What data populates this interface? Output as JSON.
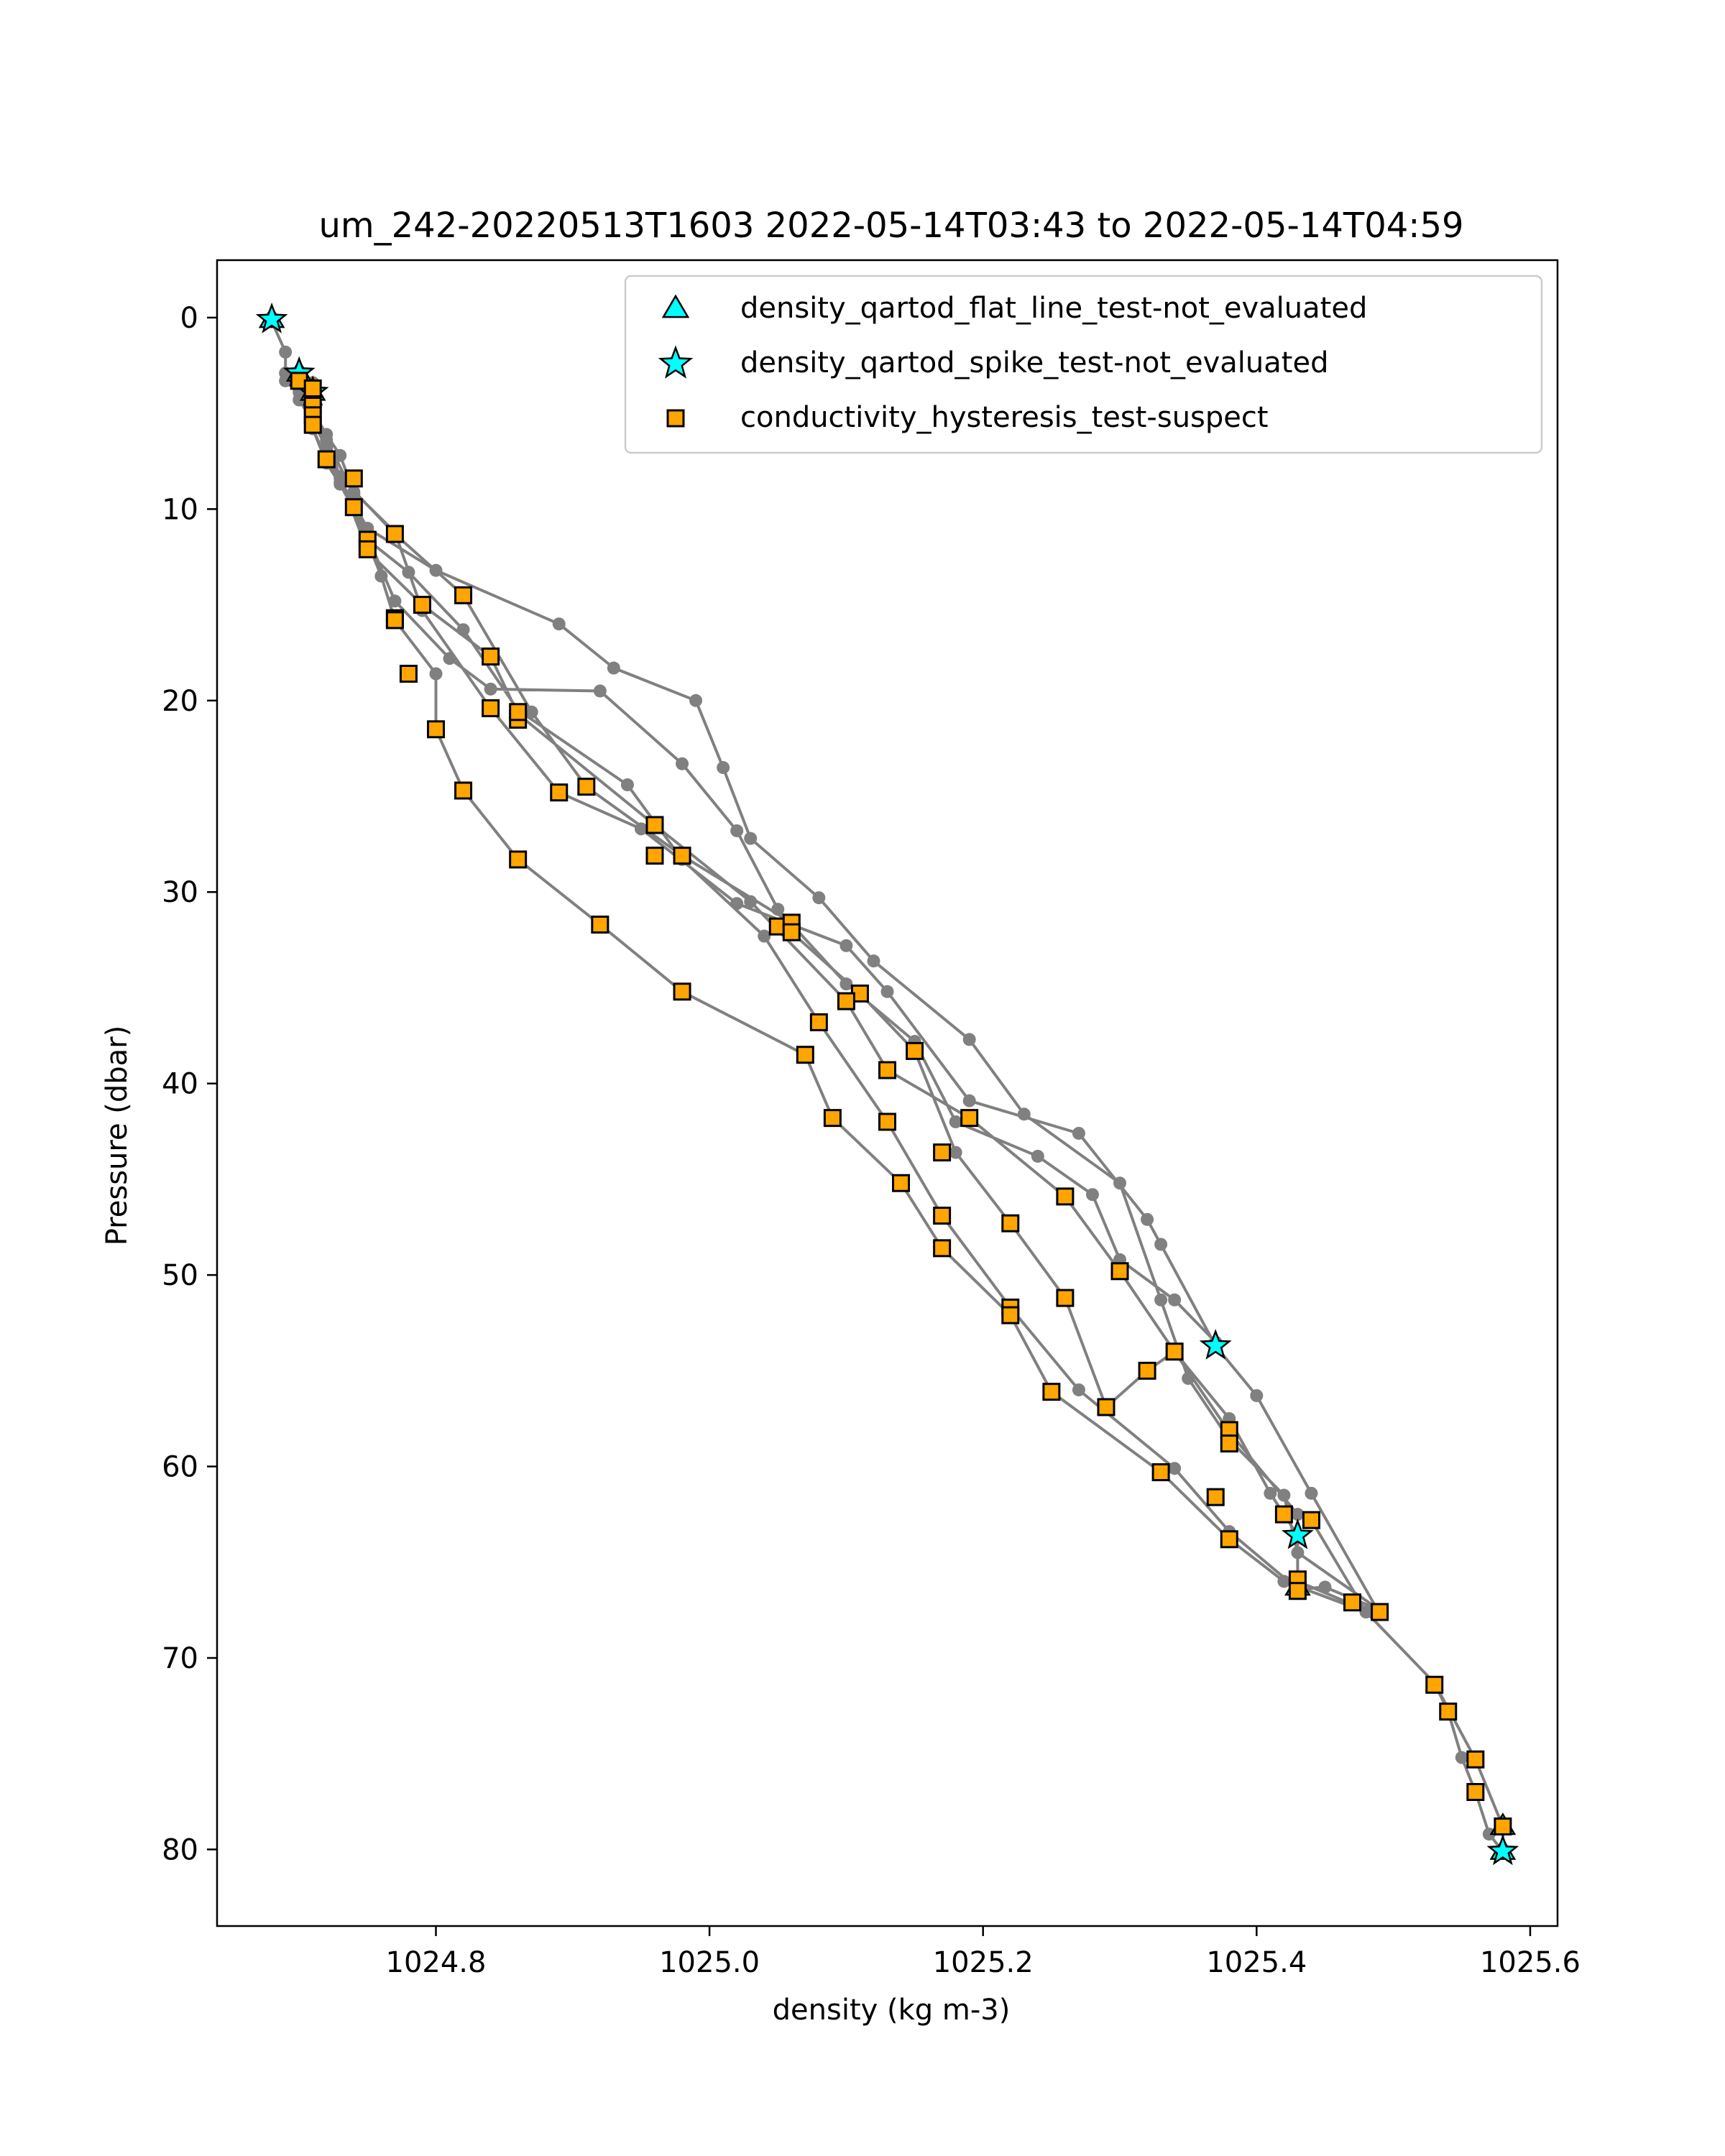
{
  "chart_data": {
    "type": "scatter",
    "title": "um_242-20220513T1603 2022-05-14T03:43 to 2022-05-14T04:59",
    "xlabel": "density (kg m-3)",
    "ylabel": "Pressure (dbar)",
    "xlim": [
      1024.64,
      1025.62
    ],
    "ylim": [
      84,
      -3
    ],
    "y_inverted": true,
    "xticks": [
      1024.8,
      1025.0,
      1025.2,
      1025.4,
      1025.6
    ],
    "xtick_labels": [
      "1024.8",
      "1025.0",
      "1025.2",
      "1025.4",
      "1025.6"
    ],
    "yticks": [
      0,
      10,
      20,
      30,
      40,
      50,
      60,
      70,
      80
    ],
    "ytick_labels": [
      "0",
      "10",
      "20",
      "30",
      "40",
      "50",
      "60",
      "70",
      "80"
    ],
    "grid": false,
    "legend_position": "top-right",
    "colors": {
      "line": "#808080",
      "suspect": "#FFA500",
      "not_evaluated": "#00FFFF",
      "edge": "#000000"
    },
    "profile_line": {
      "name": "",
      "points": [
        [
          1024.68,
          0.2
        ],
        [
          1024.69,
          1.8
        ],
        [
          1024.69,
          2.9
        ],
        [
          1024.7,
          3.4
        ],
        [
          1024.7,
          3.9
        ],
        [
          1024.71,
          4.2
        ],
        [
          1024.71,
          5.1
        ],
        [
          1024.71,
          5.8
        ],
        [
          1024.72,
          7.4
        ],
        [
          1024.73,
          8.6
        ],
        [
          1024.74,
          10.0
        ],
        [
          1024.75,
          11.7
        ],
        [
          1024.76,
          13.5
        ],
        [
          1024.77,
          15.8
        ],
        [
          1024.8,
          18.6
        ],
        [
          1024.8,
          21.5
        ],
        [
          1024.82,
          24.7
        ],
        [
          1024.86,
          28.3
        ],
        [
          1024.92,
          31.7
        ],
        [
          1024.98,
          35.2
        ],
        [
          1025.07,
          38.5
        ],
        [
          1025.09,
          41.8
        ],
        [
          1025.14,
          45.2
        ],
        [
          1025.17,
          48.6
        ],
        [
          1025.22,
          52.1
        ],
        [
          1025.25,
          56.1
        ],
        [
          1025.33,
          60.3
        ],
        [
          1025.38,
          63.8
        ],
        [
          1025.42,
          66.0
        ],
        [
          1025.48,
          67.6
        ],
        [
          1025.53,
          71.3
        ],
        [
          1025.56,
          75.3
        ],
        [
          1025.58,
          78.8
        ],
        [
          1025.58,
          80.1
        ],
        [
          1025.58,
          80.1
        ],
        [
          1025.57,
          79.2
        ],
        [
          1025.56,
          77.0
        ],
        [
          1025.55,
          75.2
        ],
        [
          1025.54,
          72.8
        ],
        [
          1025.53,
          71.3
        ],
        [
          1025.48,
          67.6
        ],
        [
          1025.44,
          62.8
        ],
        [
          1025.43,
          62.5
        ],
        [
          1025.38,
          58.2
        ],
        [
          1025.34,
          54.0
        ],
        [
          1025.32,
          55.0
        ],
        [
          1025.29,
          56.9
        ],
        [
          1025.26,
          51.2
        ],
        [
          1025.22,
          47.3
        ],
        [
          1025.18,
          43.6
        ],
        [
          1025.15,
          38.3
        ],
        [
          1025.11,
          35.3
        ],
        [
          1025.06,
          32.1
        ],
        [
          1025.06,
          31.6
        ],
        [
          1024.98,
          28.1
        ],
        [
          1024.91,
          24.5
        ],
        [
          1024.87,
          20.6
        ],
        [
          1024.82,
          14.5
        ],
        [
          1024.77,
          11.3
        ],
        [
          1024.73,
          8.3
        ],
        [
          1024.72,
          6.8
        ],
        [
          1024.71,
          5.4
        ],
        [
          1024.7,
          4.3
        ],
        [
          1024.7,
          3.6
        ],
        [
          1024.69,
          3.3
        ],
        [
          1024.7,
          3.7
        ],
        [
          1024.72,
          6.1
        ],
        [
          1024.73,
          8.4
        ],
        [
          1024.75,
          12.2
        ],
        [
          1024.79,
          15.0
        ],
        [
          1024.84,
          17.7
        ],
        [
          1024.86,
          20.7
        ],
        [
          1024.96,
          26.5
        ],
        [
          1025.03,
          30.5
        ],
        [
          1025.1,
          35.7
        ],
        [
          1025.13,
          39.3
        ],
        [
          1025.19,
          41.8
        ],
        [
          1025.26,
          45.9
        ],
        [
          1025.3,
          49.8
        ],
        [
          1025.34,
          54.0
        ],
        [
          1025.38,
          57.5
        ],
        [
          1025.41,
          61.4
        ],
        [
          1025.43,
          63.6
        ],
        [
          1025.43,
          66.0
        ],
        [
          1025.47,
          67.2
        ],
        [
          1025.49,
          67.7
        ],
        [
          1025.49,
          67.7
        ],
        [
          1025.44,
          61.4
        ],
        [
          1025.4,
          56.3
        ],
        [
          1025.37,
          53.7
        ],
        [
          1025.33,
          48.4
        ],
        [
          1025.32,
          47.1
        ],
        [
          1025.27,
          42.6
        ],
        [
          1025.19,
          40.9
        ],
        [
          1025.13,
          35.2
        ],
        [
          1025.1,
          32.8
        ],
        [
          1025.02,
          30.6
        ],
        [
          1024.95,
          26.7
        ],
        [
          1024.89,
          24.8
        ],
        [
          1024.84,
          20.4
        ],
        [
          1024.79,
          15.3
        ],
        [
          1024.77,
          11.2
        ],
        [
          1024.74,
          9.1
        ],
        [
          1024.73,
          7.2
        ],
        [
          1024.71,
          5.0
        ],
        [
          1024.7,
          3.3
        ],
        [
          1024.7,
          3.3
        ],
        [
          1024.71,
          4.5
        ],
        [
          1024.72,
          6.4
        ],
        [
          1024.74,
          9.2
        ],
        [
          1024.75,
          11.6
        ],
        [
          1024.78,
          13.3
        ],
        [
          1024.82,
          16.3
        ],
        [
          1024.86,
          20.5
        ],
        [
          1024.94,
          24.4
        ],
        [
          1024.98,
          28.3
        ],
        [
          1025.04,
          32.3
        ],
        [
          1025.08,
          36.8
        ],
        [
          1025.13,
          42.0
        ],
        [
          1025.17,
          46.9
        ],
        [
          1025.22,
          51.7
        ],
        [
          1025.27,
          56.0
        ],
        [
          1025.34,
          60.1
        ],
        [
          1025.38,
          63.4
        ],
        [
          1025.43,
          66.4
        ],
        [
          1025.45,
          66.3
        ],
        [
          1025.49,
          67.5
        ],
        [
          1025.49,
          67.5
        ],
        [
          1025.43,
          64.5
        ],
        [
          1025.42,
          61.5
        ],
        [
          1025.38,
          58.6
        ],
        [
          1025.35,
          55.4
        ],
        [
          1025.33,
          51.3
        ],
        [
          1025.3,
          45.2
        ],
        [
          1025.23,
          41.6
        ],
        [
          1025.19,
          37.7
        ],
        [
          1025.12,
          33.6
        ],
        [
          1025.08,
          30.3
        ],
        [
          1025.03,
          27.2
        ],
        [
          1025.01,
          23.5
        ],
        [
          1024.99,
          20.0
        ],
        [
          1024.93,
          18.3
        ],
        [
          1024.89,
          16.0
        ],
        [
          1024.8,
          13.2
        ],
        [
          1024.75,
          11.0
        ],
        [
          1024.72,
          7.2
        ],
        [
          1024.71,
          4.6
        ],
        [
          1024.71,
          3.4
        ],
        [
          1024.71,
          3.4
        ],
        [
          1024.71,
          5.8
        ],
        [
          1024.72,
          7.6
        ],
        [
          1024.73,
          8.7
        ],
        [
          1024.75,
          11.4
        ],
        [
          1024.77,
          14.8
        ],
        [
          1024.81,
          17.8
        ],
        [
          1024.84,
          19.4
        ],
        [
          1024.92,
          19.5
        ],
        [
          1024.98,
          23.3
        ],
        [
          1025.02,
          26.8
        ],
        [
          1025.05,
          30.9
        ],
        [
          1025.1,
          34.8
        ],
        [
          1025.15,
          37.8
        ],
        [
          1025.18,
          42.0
        ],
        [
          1025.24,
          43.8
        ],
        [
          1025.28,
          45.8
        ],
        [
          1025.3,
          49.2
        ],
        [
          1025.34,
          51.3
        ],
        [
          1025.37,
          53.5
        ]
      ]
    },
    "series": [
      {
        "name": "density_qartod_flat_line_test-not_evaluated",
        "marker": "triangle",
        "points": [
          [
            1024.68,
            0.1
          ],
          [
            1024.7,
            2.9
          ],
          [
            1024.71,
            3.9
          ],
          [
            1025.43,
            66.3
          ],
          [
            1025.58,
            78.8
          ],
          [
            1025.58,
            80.1
          ]
        ]
      },
      {
        "name": "density_qartod_spike_test-not_evaluated",
        "marker": "star",
        "points": [
          [
            1024.68,
            0.1
          ],
          [
            1024.7,
            2.9
          ],
          [
            1024.71,
            3.9
          ],
          [
            1025.37,
            53.7
          ],
          [
            1025.43,
            63.6
          ],
          [
            1025.58,
            80.1
          ]
        ]
      },
      {
        "name": "conductivity_hysteresis_test-suspect",
        "marker": "square",
        "points": [
          [
            1024.7,
            3.3
          ],
          [
            1024.71,
            3.7
          ],
          [
            1024.71,
            4.6
          ],
          [
            1024.71,
            5.1
          ],
          [
            1024.71,
            5.6
          ],
          [
            1024.72,
            7.4
          ],
          [
            1024.74,
            8.4
          ],
          [
            1024.74,
            9.9
          ],
          [
            1024.75,
            11.6
          ],
          [
            1024.75,
            12.1
          ],
          [
            1024.77,
            11.3
          ],
          [
            1024.77,
            15.7
          ],
          [
            1024.77,
            15.8
          ],
          [
            1024.79,
            15.0
          ],
          [
            1024.82,
            14.5
          ],
          [
            1024.78,
            18.6
          ],
          [
            1024.8,
            21.5
          ],
          [
            1024.84,
            17.7
          ],
          [
            1024.84,
            20.4
          ],
          [
            1024.86,
            21.0
          ],
          [
            1024.86,
            20.6
          ],
          [
            1024.82,
            24.7
          ],
          [
            1024.89,
            24.8
          ],
          [
            1024.91,
            24.5
          ],
          [
            1024.86,
            28.3
          ],
          [
            1024.96,
            26.5
          ],
          [
            1024.96,
            28.1
          ],
          [
            1024.98,
            28.1
          ],
          [
            1024.92,
            31.7
          ],
          [
            1025.05,
            31.8
          ],
          [
            1025.06,
            31.6
          ],
          [
            1025.06,
            32.1
          ],
          [
            1024.98,
            35.2
          ],
          [
            1025.11,
            35.3
          ],
          [
            1025.1,
            35.7
          ],
          [
            1025.08,
            36.8
          ],
          [
            1025.07,
            38.5
          ],
          [
            1025.15,
            38.3
          ],
          [
            1025.13,
            39.3
          ],
          [
            1025.09,
            41.8
          ],
          [
            1025.13,
            42.0
          ],
          [
            1025.19,
            41.8
          ],
          [
            1025.17,
            43.6
          ],
          [
            1025.14,
            45.2
          ],
          [
            1025.17,
            46.9
          ],
          [
            1025.22,
            47.3
          ],
          [
            1025.26,
            45.9
          ],
          [
            1025.17,
            48.6
          ],
          [
            1025.3,
            49.8
          ],
          [
            1025.22,
            51.7
          ],
          [
            1025.22,
            52.1
          ],
          [
            1025.26,
            51.2
          ],
          [
            1025.32,
            55.0
          ],
          [
            1025.34,
            54.0
          ],
          [
            1025.25,
            56.1
          ],
          [
            1025.29,
            56.9
          ],
          [
            1025.38,
            58.1
          ],
          [
            1025.38,
            58.8
          ],
          [
            1025.33,
            60.3
          ],
          [
            1025.37,
            61.6
          ],
          [
            1025.38,
            63.8
          ],
          [
            1025.42,
            62.5
          ],
          [
            1025.44,
            62.8
          ],
          [
            1025.43,
            65.9
          ],
          [
            1025.43,
            66.5
          ],
          [
            1025.47,
            67.1
          ],
          [
            1025.49,
            67.6
          ],
          [
            1025.53,
            71.4
          ],
          [
            1025.54,
            72.8
          ],
          [
            1025.56,
            75.3
          ],
          [
            1025.56,
            77.0
          ],
          [
            1025.58,
            78.8
          ]
        ]
      }
    ]
  }
}
